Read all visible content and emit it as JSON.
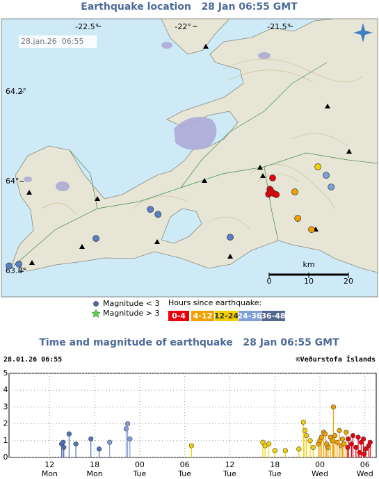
{
  "map": {
    "title": "Earthquake location   28 Jan 06:55 GMT",
    "timestamp": "28.jan.26  06:55",
    "lonlim": [
      -22.946,
      -20.986
    ],
    "latlim": [
      63.743,
      64.363
    ],
    "lonticks": [
      {
        "value": -22.5,
        "label": "-22.5°"
      },
      {
        "value": -22,
        "label": "-22°"
      },
      {
        "value": -21.5,
        "label": "-21.5°"
      }
    ],
    "latticks": [
      {
        "value": 64.2,
        "label": "64.2°"
      },
      {
        "value": 64,
        "label": "64°"
      },
      {
        "value": 63.8,
        "label": "63.8°"
      }
    ],
    "scale": {
      "unit": "km",
      "ticks": [
        0,
        10,
        20
      ]
    },
    "quakes": [
      {
        "lon": -22.17,
        "lat": 63.938,
        "color": "#5b7fc4"
      },
      {
        "lon": -22.13,
        "lat": 63.927,
        "color": "#5b7fc4"
      },
      {
        "lon": -22.453,
        "lat": 63.873,
        "color": "#5b7fc4"
      },
      {
        "lon": -21.754,
        "lat": 63.876,
        "color": "#5b7fc4"
      },
      {
        "lon": -22.906,
        "lat": 63.812,
        "color": "#5b7fc4"
      },
      {
        "lon": -22.855,
        "lat": 63.816,
        "color": "#5b7fc4"
      },
      {
        "lon": -21.228,
        "lat": 63.988,
        "color": "#7f9fd8"
      },
      {
        "lon": -21.254,
        "lat": 64.014,
        "color": "#7f9fd8"
      },
      {
        "lon": -21.297,
        "lat": 64.033,
        "color": "#f5d000"
      },
      {
        "lon": -21.417,
        "lat": 63.977,
        "color": "#f0a000"
      },
      {
        "lon": -21.402,
        "lat": 63.918,
        "color": "#f0a000"
      },
      {
        "lon": -21.33,
        "lat": 63.893,
        "color": "#f0a000"
      },
      {
        "lon": -21.533,
        "lat": 64.008,
        "color": "#e8000b"
      },
      {
        "lon": -21.547,
        "lat": 63.983,
        "color": "#e8000b"
      },
      {
        "lon": -21.529,
        "lat": 63.974,
        "color": "#e8000b"
      },
      {
        "lon": -21.514,
        "lat": 63.971,
        "color": "#e8000b"
      },
      {
        "lon": -21.554,
        "lat": 63.972,
        "color": "#e8000b"
      },
      {
        "lon": -21.54,
        "lat": 63.978,
        "color": "#e8000b"
      }
    ]
  },
  "legend": {
    "magnitude_small": "Magnitude < 3",
    "magnitude_large": "Magnitude > 3",
    "hours_title": "Hours since earthquake:",
    "hours": [
      {
        "label": "0-4",
        "color": "#e8000b"
      },
      {
        "label": "4-12",
        "color": "#f0a000"
      },
      {
        "label": "12-24",
        "color": "#f5d000"
      },
      {
        "label": "24-36",
        "color": "#7f9fd8"
      },
      {
        "label": "36-48",
        "color": "#56678e"
      }
    ]
  },
  "chart_data": {
    "type": "scatter",
    "title": "Time and magnitude of earthquake   28 Jan 06:55 GMT",
    "date": "28.01.26 06:55",
    "credit": "©Veðurstofa Íslands",
    "xlim": [
      6.6,
      55.5
    ],
    "xticks": [
      {
        "value": 12,
        "label": "12"
      },
      {
        "value": 18,
        "label": "18"
      },
      {
        "value": 24,
        "label": "00"
      },
      {
        "value": 30,
        "label": "06"
      },
      {
        "value": 36,
        "label": "12"
      },
      {
        "value": 42,
        "label": "18"
      },
      {
        "value": 48,
        "label": "00"
      },
      {
        "value": 54,
        "label": "06"
      }
    ],
    "xday_labels": [
      "Mon",
      "Mon",
      "Tue",
      "Tue",
      "Tue",
      "Tue",
      "Wed",
      "Wed"
    ],
    "ylim": [
      0,
      5
    ],
    "yticks": [
      0,
      1,
      2,
      3,
      4,
      5
    ],
    "grid": true,
    "series": [
      {
        "color": "#4f73b8",
        "x": [
          13.6,
          13.8,
          13.9,
          14.6,
          15.5,
          17.5,
          18.6
        ],
        "values": [
          0.8,
          0.9,
          0.6,
          1.4,
          0.8,
          1.1,
          0.5
        ]
      },
      {
        "color": "#7f9fd8",
        "x": [
          20.0,
          22.2,
          22.4,
          22.7
        ],
        "values": [
          0.9,
          1.7,
          2.0,
          1.1
        ]
      },
      {
        "color": "#f5d000",
        "x": [
          30.9,
          40.4,
          40.7,
          41.2,
          42.0,
          43.4,
          45.2,
          45.8,
          46.0,
          46.2,
          46.7,
          47.1
        ],
        "values": [
          0.7,
          0.9,
          0.7,
          0.8,
          0.4,
          0.4,
          0.5,
          2.1,
          1.6,
          1.3,
          1.0,
          0.6
        ]
      },
      {
        "color": "#f0a000",
        "x": [
          47.8,
          48.0,
          48.2,
          48.5,
          48.7,
          48.9,
          49.1,
          49.4,
          49.7,
          49.8,
          50.0,
          50.3,
          50.6,
          50.8,
          51.0,
          51.2,
          51.5
        ],
        "values": [
          0.8,
          1.0,
          1.2,
          1.5,
          1.4,
          0.8,
          0.6,
          1.2,
          1.0,
          3.0,
          1.3,
          0.9,
          1.6,
          0.7,
          1.1,
          0.8,
          1.5
        ]
      },
      {
        "color": "#e8000b",
        "x": [
          51.7,
          51.8,
          52.2,
          52.4,
          52.8,
          53.1,
          53.3,
          53.5,
          53.8,
          53.9,
          54.1,
          54.5,
          54.7
        ],
        "values": [
          0.6,
          1.1,
          0.8,
          1.3,
          0.6,
          1.2,
          0.3,
          0.9,
          1.1,
          0.2,
          0.5,
          0.7,
          0.9
        ]
      }
    ]
  }
}
